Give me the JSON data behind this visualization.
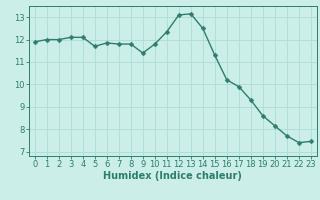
{
  "x": [
    0,
    1,
    2,
    3,
    4,
    5,
    6,
    7,
    8,
    9,
    10,
    11,
    12,
    13,
    14,
    15,
    16,
    17,
    18,
    19,
    20,
    21,
    22,
    23
  ],
  "y": [
    11.9,
    12.0,
    12.0,
    12.1,
    12.1,
    11.7,
    11.85,
    11.8,
    11.8,
    11.4,
    11.8,
    12.35,
    13.1,
    13.15,
    12.5,
    11.3,
    10.2,
    9.9,
    9.3,
    8.6,
    8.15,
    7.7,
    7.4,
    7.45
  ],
  "line_color": "#2e7d6e",
  "marker_color": "#2e7d6e",
  "bg_color": "#cceee8",
  "grid_color": "#aaddd5",
  "xlabel": "Humidex (Indice chaleur)",
  "xlim": [
    -0.5,
    23.5
  ],
  "ylim": [
    6.8,
    13.5
  ],
  "yticks": [
    7,
    8,
    9,
    10,
    11,
    12,
    13
  ],
  "xticks": [
    0,
    1,
    2,
    3,
    4,
    5,
    6,
    7,
    8,
    9,
    10,
    11,
    12,
    13,
    14,
    15,
    16,
    17,
    18,
    19,
    20,
    21,
    22,
    23
  ],
  "tick_fontsize": 6,
  "xlabel_fontsize": 7,
  "line_width": 1.0,
  "marker_size": 2.5
}
